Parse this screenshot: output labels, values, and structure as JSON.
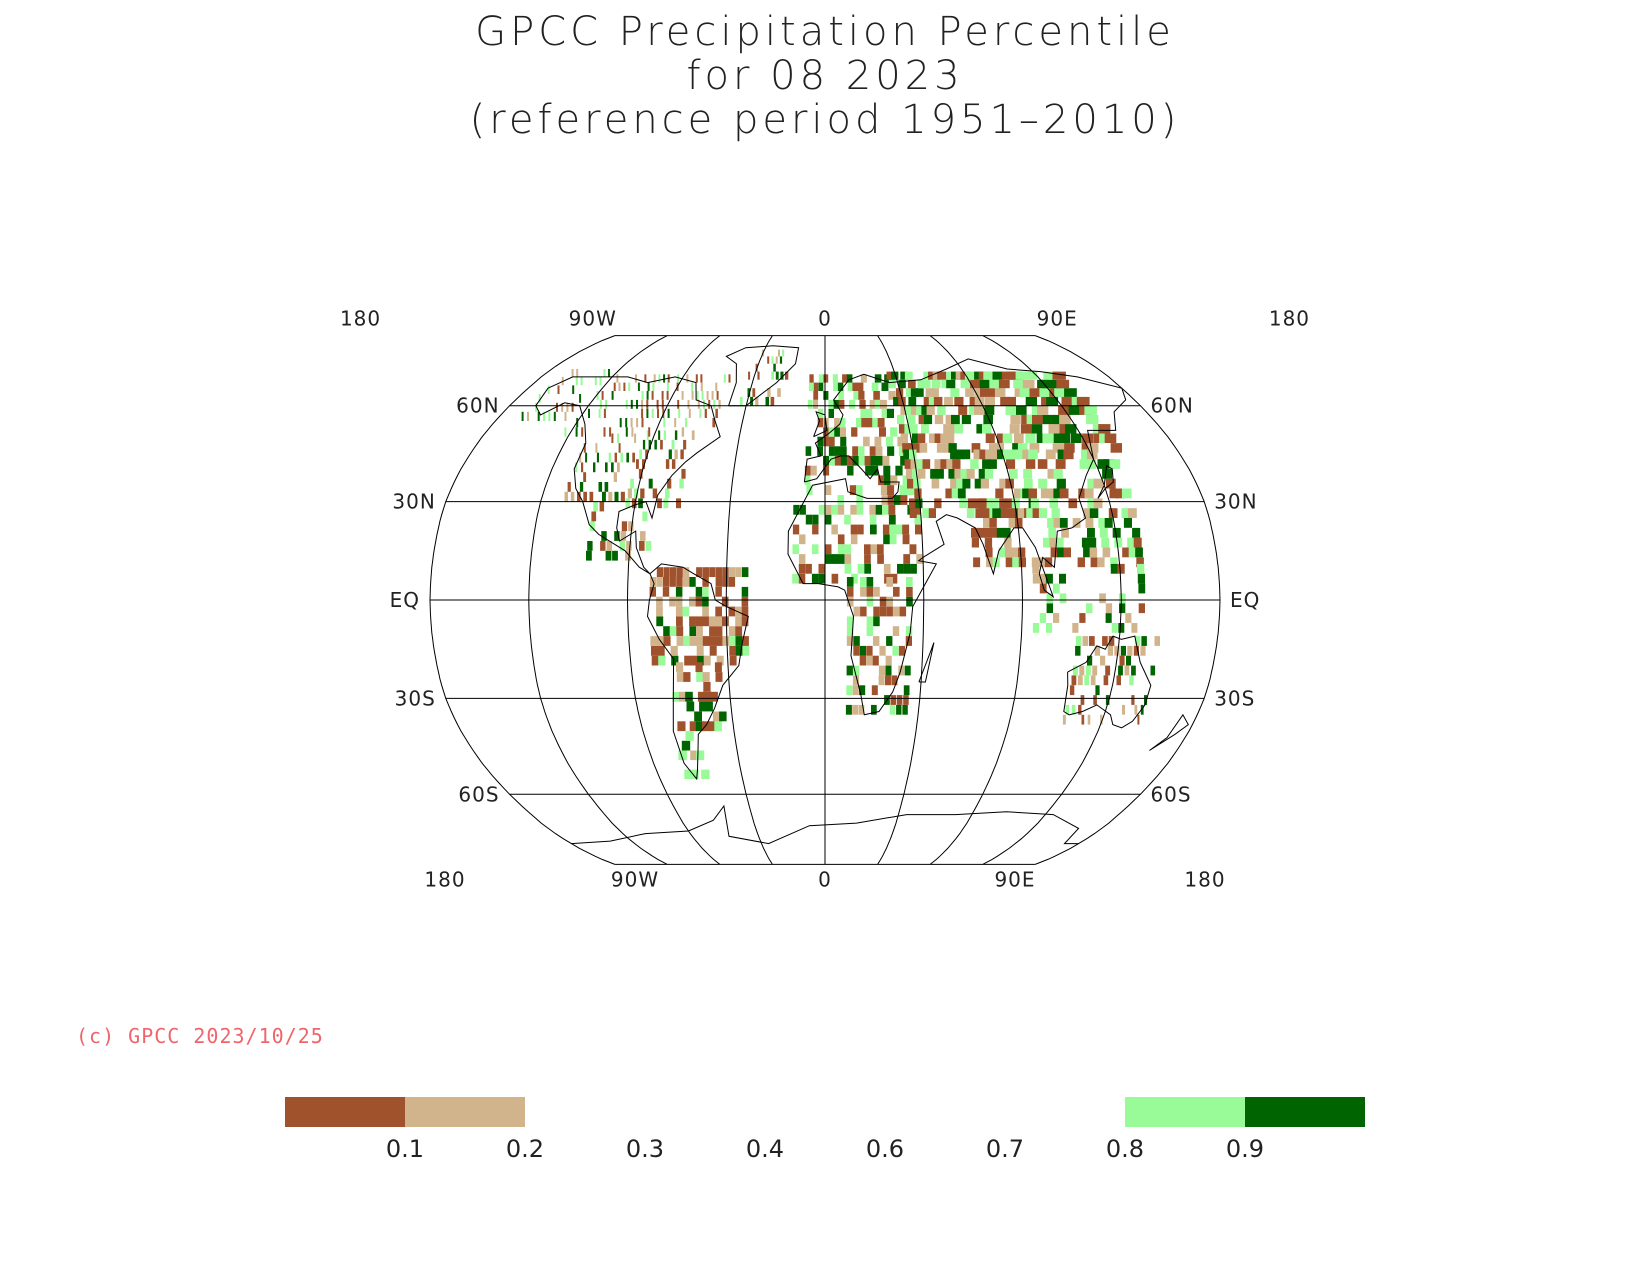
{
  "title": {
    "line1": "GPCC Precipitation Percentile",
    "line2": "for 08 2023",
    "line3": "(reference period 1951–2010)"
  },
  "copyright": "(c) GPCC 2023/10/25",
  "map": {
    "projection": "Robinson",
    "central_meridian": 0,
    "lon_labels_top": [
      "180",
      "90W",
      "0",
      "90E",
      "180"
    ],
    "lon_labels_bottom": [
      "180",
      "90W",
      "0",
      "90E",
      "180"
    ],
    "lat_labels_left": [
      "60N",
      "30N",
      "EQ",
      "30S",
      "60S"
    ],
    "lat_labels_right": [
      "60N",
      "30N",
      "EQ",
      "30S",
      "60S"
    ]
  },
  "colors": {
    "very_dry": "#a0522d",
    "dry": "#d2b48c",
    "wet": "#98fb98",
    "very_wet": "#006400",
    "grid": "#000000",
    "copyright": "#f0656b"
  },
  "legend": {
    "boxes": [
      {
        "name": "below-0.1",
        "color": "#a0522d"
      },
      {
        "name": "0.1-0.2",
        "color": "#d2b48c"
      },
      {
        "name": "0.2-0.3",
        "color": "#ffffff"
      },
      {
        "name": "0.3-0.4",
        "color": "#ffffff"
      },
      {
        "name": "0.4-0.6",
        "color": "#ffffff"
      },
      {
        "name": "0.6-0.7",
        "color": "#ffffff"
      },
      {
        "name": "0.7-0.8",
        "color": "#ffffff"
      },
      {
        "name": "0.8-0.9",
        "color": "#98fb98"
      },
      {
        "name": "above-0.9",
        "color": "#006400"
      }
    ],
    "labels": [
      "0.1",
      "0.2",
      "0.3",
      "0.4",
      "0.6",
      "0.7",
      "0.8",
      "0.9"
    ]
  }
}
